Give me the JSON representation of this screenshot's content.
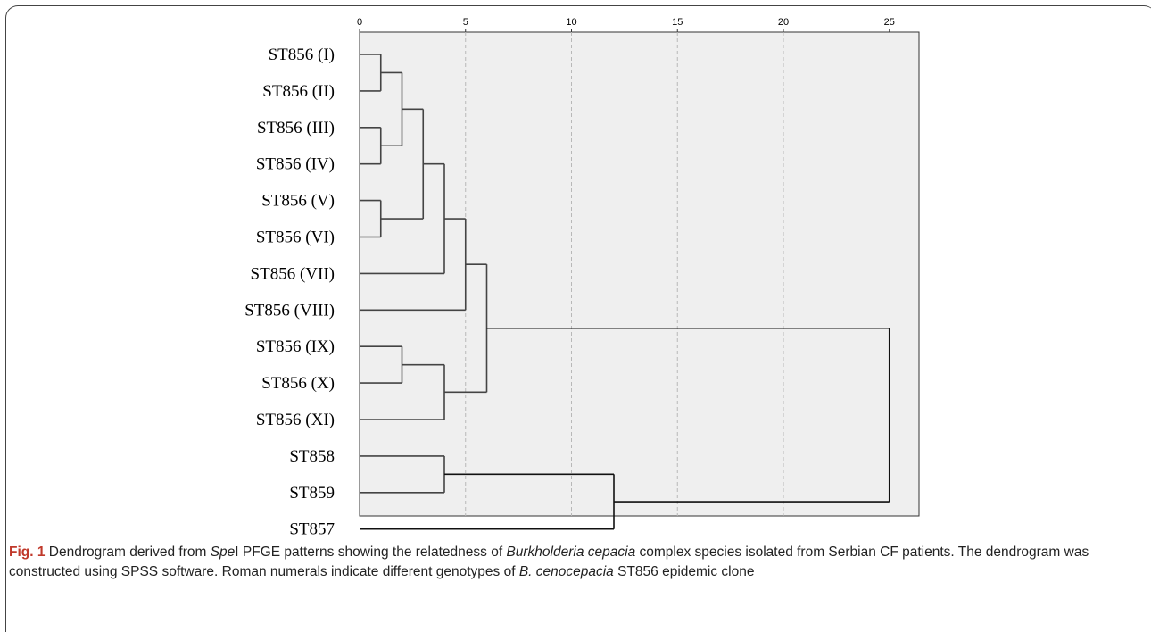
{
  "chart_data": {
    "type": "dendrogram",
    "x_ticks": [
      0,
      5,
      10,
      15,
      20,
      25
    ],
    "xlim": [
      0,
      25
    ],
    "grid": "vertical dashed",
    "leaves": [
      "ST856 (I)",
      "ST856 (II)",
      "ST856 (III)",
      "ST856 (IV)",
      "ST856 (V)",
      "ST856 (VI)",
      "ST856 (VII)",
      "ST856 (VIII)",
      "ST856 (IX)",
      "ST856 (X)",
      "ST856 (XI)",
      "ST858",
      "ST859",
      "ST857"
    ],
    "merges": [
      {
        "left": "ST856 (I)",
        "right": "ST856 (II)",
        "height": 1
      },
      {
        "left": "ST856 (III)",
        "right": "ST856 (IV)",
        "height": 1
      },
      {
        "left": "ST856 (V)",
        "right": "ST856 (VI)",
        "height": 1
      },
      {
        "left": "I-II",
        "right": "III-IV",
        "height": 2
      },
      {
        "left": "I-IV",
        "right": "V-VI",
        "height": 3
      },
      {
        "left": "I-VI",
        "right": "ST856 (VII)",
        "height": 4
      },
      {
        "left": "I-VII",
        "right": "ST856 (VIII)",
        "height": 5
      },
      {
        "left": "ST856 (IX)",
        "right": "ST856 (X)",
        "height": 2
      },
      {
        "left": "IX-X",
        "right": "ST856 (XI)",
        "height": 4
      },
      {
        "left": "I-VIII",
        "right": "IX-XI",
        "height": 6
      },
      {
        "left": "ST858",
        "right": "ST859",
        "height": 4
      },
      {
        "left": "ST858-ST859",
        "right": "ST857",
        "height": 12
      },
      {
        "left": "ST856 cluster",
        "right": "ST857-ST859 cluster",
        "height": 25
      }
    ]
  },
  "caption": {
    "fig_label": "Fig. 1",
    "t1": " Dendrogram derived from ",
    "t2": "Spe",
    "t3": "I PFGE patterns showing the relatedness of ",
    "t4": "Burkholderia cepacia",
    "t5": " complex species isolated from Serbian CF patients. The dendrogram was constructed using SPSS software. Roman numerals indicate different genotypes of ",
    "t6": "B. cenocepacia",
    "t7": " ST856 epidemic clone"
  }
}
